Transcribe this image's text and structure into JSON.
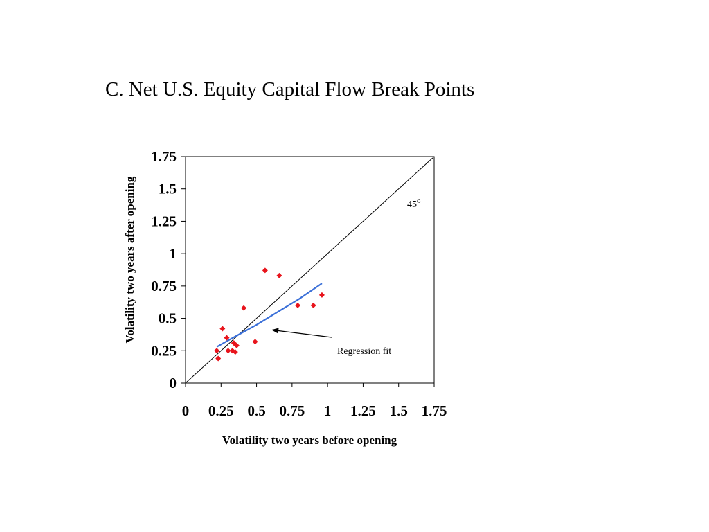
{
  "title": "C. Net U.S. Equity Capital Flow Break Points",
  "chart_data": {
    "type": "scatter",
    "xlabel": "Volatility two years before opening",
    "ylabel": "Volatility two years after opening",
    "xlim": [
      0,
      1.75
    ],
    "ylim": [
      0,
      1.75
    ],
    "x_ticks": [
      "0",
      "0.25",
      "0.5",
      "0.75",
      "1",
      "1.25",
      "1.5",
      "1.75"
    ],
    "y_ticks": [
      "0",
      "0.25",
      "0.5",
      "0.75",
      "1",
      "1.25",
      "1.5",
      "1.75"
    ],
    "points_color": "#e8141c",
    "points": [
      {
        "x": 0.22,
        "y": 0.25
      },
      {
        "x": 0.23,
        "y": 0.19
      },
      {
        "x": 0.26,
        "y": 0.42
      },
      {
        "x": 0.29,
        "y": 0.35
      },
      {
        "x": 0.3,
        "y": 0.25
      },
      {
        "x": 0.33,
        "y": 0.25
      },
      {
        "x": 0.34,
        "y": 0.31
      },
      {
        "x": 0.35,
        "y": 0.24
      },
      {
        "x": 0.36,
        "y": 0.29
      },
      {
        "x": 0.41,
        "y": 0.58
      },
      {
        "x": 0.49,
        "y": 0.32
      },
      {
        "x": 0.56,
        "y": 0.87
      },
      {
        "x": 0.66,
        "y": 0.83
      },
      {
        "x": 0.79,
        "y": 0.6
      },
      {
        "x": 0.9,
        "y": 0.6
      },
      {
        "x": 0.96,
        "y": 0.68
      }
    ],
    "regression_color": "#3a6fd8",
    "regression_line": [
      {
        "x": 0.22,
        "y": 0.28
      },
      {
        "x": 0.35,
        "y": 0.36
      },
      {
        "x": 0.5,
        "y": 0.45
      },
      {
        "x": 0.65,
        "y": 0.55
      },
      {
        "x": 0.8,
        "y": 0.65
      },
      {
        "x": 0.96,
        "y": 0.77
      }
    ],
    "diagonal_label": "45",
    "diagonal_label_sup": "o",
    "annotation": {
      "text": "Regression fit",
      "arrow_to": {
        "x": 0.61,
        "y": 0.41
      }
    }
  }
}
